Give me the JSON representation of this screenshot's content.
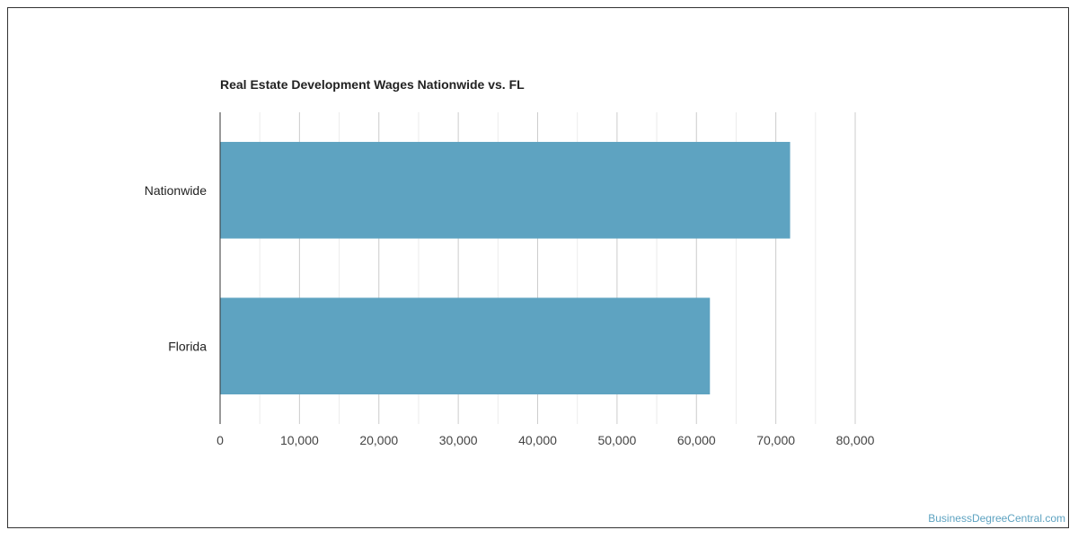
{
  "watermark": "BusinessDegreeCentral.com",
  "chart_data": {
    "type": "bar",
    "orientation": "horizontal",
    "title": "Real Estate Development Wages Nationwide vs. FL",
    "xlabel": "",
    "ylabel": "",
    "categories": [
      "Nationwide",
      "Florida"
    ],
    "values": [
      71800,
      61700
    ],
    "xlim": [
      0,
      80000
    ],
    "xticks": [
      0,
      10000,
      20000,
      30000,
      40000,
      50000,
      60000,
      70000,
      80000
    ],
    "xtick_labels": [
      "0",
      "10,000",
      "20,000",
      "30,000",
      "40,000",
      "50,000",
      "60,000",
      "70,000",
      "80,000"
    ],
    "grid": true,
    "legend": "none",
    "bar_color": "#5ea3c1"
  }
}
